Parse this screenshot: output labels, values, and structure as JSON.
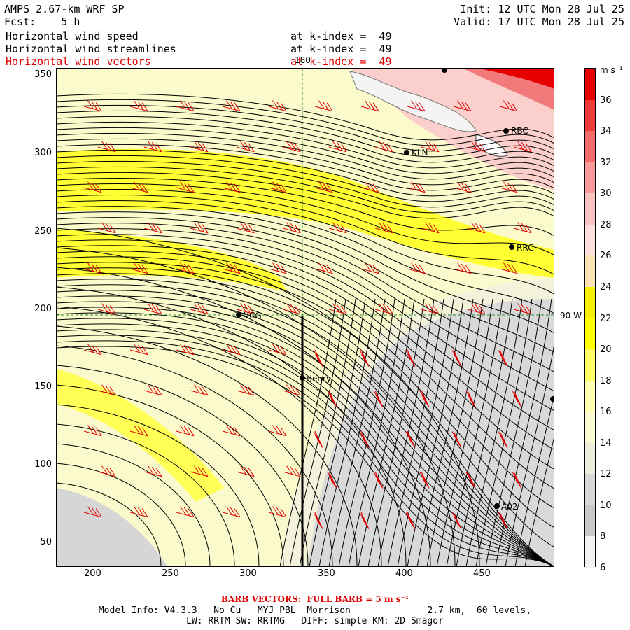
{
  "header": {
    "model_title": "AMPS 2.67-km WRF SP",
    "forecast_label": "Fcst:    5 h",
    "init": "Init: 12 UTC Mon 28 Jul 25",
    "valid": "Valid: 17 UTC Mon 28 Jul 25",
    "fields": [
      {
        "name": "Horizontal wind speed",
        "level": "at k-index =  49",
        "color": "#000000"
      },
      {
        "name": "Horizontal wind streamlines",
        "level": "at k-index =  49",
        "color": "#000000"
      },
      {
        "name": "Horizontal wind vectors",
        "level": "at k-index =  49",
        "color": "#e00000"
      }
    ]
  },
  "map": {
    "x_ticks": [
      "200",
      "250",
      "300",
      "350",
      "400",
      "450"
    ],
    "y_ticks": [
      "350",
      "300",
      "250",
      "200",
      "150",
      "100",
      "50"
    ],
    "meridian_label": "180",
    "parallel_label": "90 W",
    "stations": [
      {
        "name": "KLN"
      },
      {
        "name": "RBC"
      },
      {
        "name": "RRC"
      },
      {
        "name": "NCG"
      },
      {
        "name": "Henry"
      },
      {
        "name": "A02"
      }
    ]
  },
  "colorbar": {
    "unit": "m s⁻¹",
    "labels": [
      "36",
      "34",
      "32",
      "30",
      "28",
      "26",
      "24",
      "22",
      "20",
      "18",
      "16",
      "14",
      "12",
      "10",
      "8",
      "6"
    ],
    "colors": [
      "#e60000",
      "#f03a3a",
      "#f56b6b",
      "#f89a9a",
      "#fbc2c2",
      "#fde0dc",
      "#fce3b4",
      "#f7f100",
      "#ffff00",
      "#ffff66",
      "#ffffb0",
      "#fafad2",
      "#ededdc",
      "#d8d8d8",
      "#c8c8c8",
      "#f2f2f2"
    ]
  },
  "footer": {
    "barb_note": "BARB VECTORS:  FULL BARB = 5 m s⁻¹",
    "model_info": "Model Info: V4.3.3   No Cu   MYJ PBL  Morrison              2.7 km,  60 levels,",
    "physics_info": "LW: RRTM SW: RRTMG   DIFF: simple KM: 2D Smagor"
  }
}
